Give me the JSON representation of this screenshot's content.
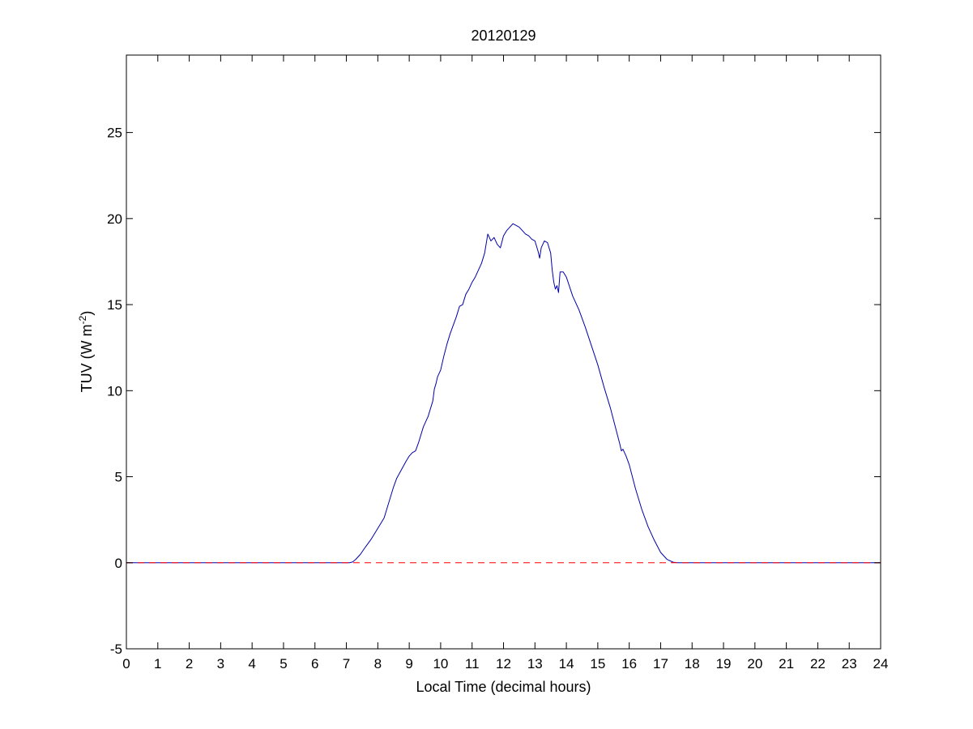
{
  "chart_data": {
    "type": "line",
    "title": "20120129",
    "xlabel": "Local Time (decimal hours)",
    "ylabel": "TUV (W m",
    "ylabel_superscript": "-2",
    "ylabel_suffix": ")",
    "xlim": [
      0,
      24
    ],
    "ylim": [
      -5,
      29.5
    ],
    "xticks": [
      0,
      1,
      2,
      3,
      4,
      5,
      6,
      7,
      8,
      9,
      10,
      11,
      12,
      13,
      14,
      15,
      16,
      17,
      18,
      19,
      20,
      21,
      22,
      23,
      24
    ],
    "yticks": [
      -5,
      0,
      5,
      10,
      15,
      20,
      25
    ],
    "grid": false,
    "series": [
      {
        "color": "#0000aa",
        "style": "solid",
        "x": [
          0,
          7.1,
          7.2,
          7.3,
          7.45,
          7.6,
          7.8,
          8.0,
          8.2,
          8.4,
          8.5,
          8.6,
          8.75,
          8.9,
          9.0,
          9.1,
          9.2,
          9.3,
          9.45,
          9.6,
          9.75,
          9.8,
          9.85,
          9.9,
          10.0,
          10.05,
          10.1,
          10.2,
          10.3,
          10.4,
          10.5,
          10.55,
          10.6,
          10.7,
          10.75,
          10.8,
          10.9,
          11.0,
          11.1,
          11.2,
          11.25,
          11.3,
          11.4,
          11.5,
          11.6,
          11.7,
          11.8,
          11.9,
          12.0,
          12.1,
          12.2,
          12.3,
          12.4,
          12.5,
          12.6,
          12.7,
          12.8,
          12.9,
          13.0,
          13.1,
          13.15,
          13.2,
          13.3,
          13.4,
          13.5,
          13.55,
          13.6,
          13.65,
          13.7,
          13.75,
          13.8,
          13.9,
          14.0,
          14.2,
          14.4,
          14.6,
          14.8,
          15.0,
          15.2,
          15.4,
          15.6,
          15.7,
          15.75,
          15.8,
          15.9,
          16.0,
          16.2,
          16.4,
          16.6,
          16.8,
          17.0,
          17.2,
          17.4,
          17.55,
          17.7,
          17.8,
          18.0,
          24
        ],
        "y": [
          0,
          0,
          0.05,
          0.2,
          0.5,
          0.9,
          1.4,
          2.0,
          2.6,
          3.8,
          4.4,
          4.9,
          5.4,
          5.9,
          6.2,
          6.4,
          6.5,
          7.0,
          7.9,
          8.5,
          9.4,
          10.1,
          10.4,
          10.8,
          11.2,
          11.6,
          12.0,
          12.7,
          13.3,
          13.8,
          14.3,
          14.6,
          14.9,
          15.0,
          15.3,
          15.6,
          15.9,
          16.3,
          16.6,
          17.0,
          17.2,
          17.4,
          18.0,
          19.1,
          18.7,
          18.9,
          18.5,
          18.3,
          19.0,
          19.3,
          19.5,
          19.7,
          19.6,
          19.5,
          19.3,
          19.1,
          19.0,
          18.8,
          18.7,
          18.1,
          17.7,
          18.3,
          18.7,
          18.6,
          18.0,
          17.0,
          16.3,
          15.9,
          16.1,
          15.7,
          16.9,
          16.9,
          16.6,
          15.5,
          14.7,
          13.7,
          12.6,
          11.5,
          10.2,
          9.0,
          7.6,
          6.9,
          6.5,
          6.6,
          6.2,
          5.7,
          4.3,
          3.1,
          2.1,
          1.3,
          0.6,
          0.2,
          0.03,
          0,
          0,
          0,
          0,
          0
        ]
      },
      {
        "color": "#ff0000",
        "style": "dashed",
        "x": [
          0,
          24
        ],
        "y": [
          0,
          0
        ]
      }
    ]
  }
}
